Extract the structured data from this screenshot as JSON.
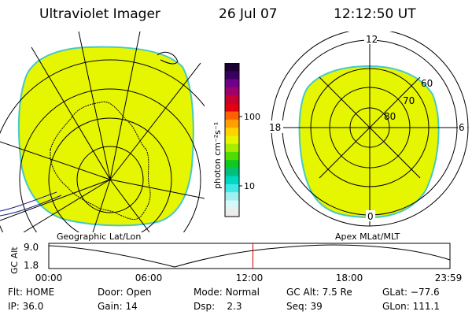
{
  "header": {
    "instrument": "Ultraviolet Imager",
    "date": "26 Jul 07",
    "time": "12:12:50 UT"
  },
  "colors": {
    "image_fill": "#e6f500",
    "image_edge": "#45c9c9",
    "background": "#ffffff",
    "time_marker": "#d40000"
  },
  "colorbar": {
    "label": "photon cm⁻²s⁻¹",
    "ticks": [
      "100",
      "10"
    ],
    "colors_top_to_bottom": [
      "#1a0030",
      "#3a0060",
      "#70008a",
      "#a0006a",
      "#c80030",
      "#e00010",
      "#ff6000",
      "#ff9f00",
      "#ffd200",
      "#e6f500",
      "#a8ec00",
      "#50dc00",
      "#10c820",
      "#00c080",
      "#00d8c0",
      "#40e8e8",
      "#a0f0f0",
      "#d8f8f8",
      "#ececec"
    ]
  },
  "left_map": {
    "label": "Geographic Lat/Lon"
  },
  "right_map": {
    "label": "Apex MLat/MLT",
    "mlt_labels": {
      "top": "12",
      "left": "18",
      "right": "6",
      "bottom": "0"
    },
    "lat_labels": [
      "60",
      "70",
      "80"
    ]
  },
  "altitude_plot": {
    "ylabel": "GC Alt",
    "yticks": [
      "9.0",
      "1.8"
    ],
    "xticks": [
      "00:00",
      "06:00",
      "12:00",
      "18:00",
      "23:59"
    ],
    "current_time_hours": 12.21
  },
  "status": {
    "flt": {
      "label": "Flt:",
      "value": "HOME"
    },
    "ip": {
      "label": "IP:",
      "value": "36.0"
    },
    "door": {
      "label": "Door:",
      "value": "Open"
    },
    "gain": {
      "label": "Gain:",
      "value": "14"
    },
    "mode": {
      "label": "Mode:",
      "value": "Normal"
    },
    "dsp": {
      "label": "Dsp:",
      "value": "2.3"
    },
    "gc_alt": {
      "label": "GC Alt:",
      "value": "7.5 Re"
    },
    "seq": {
      "label": "Seq:",
      "value": "39"
    },
    "glat": {
      "label": "GLat:",
      "value": "−77.6"
    },
    "glon": {
      "label": "GLon:",
      "value": "111.1"
    }
  }
}
